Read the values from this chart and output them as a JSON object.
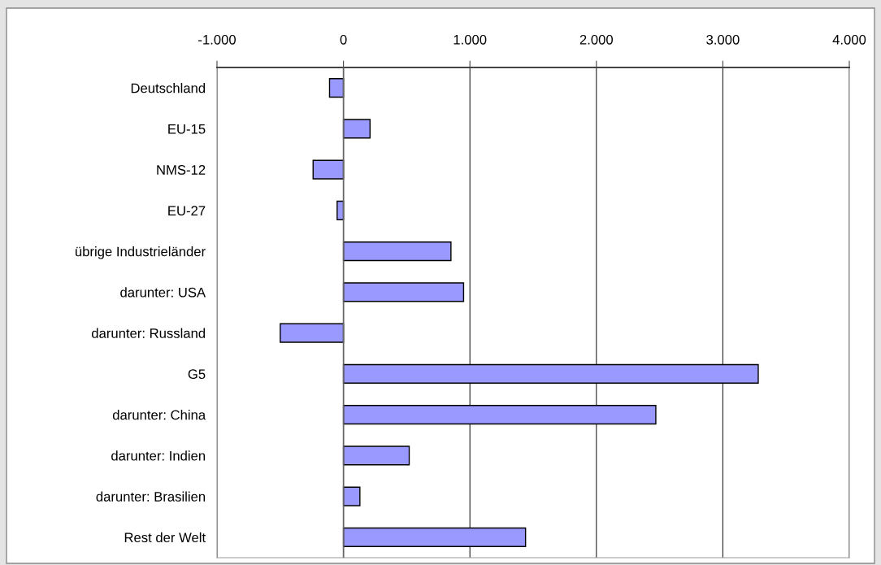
{
  "chart_data": {
    "type": "bar",
    "orientation": "horizontal",
    "categories": [
      "Deutschland",
      "EU-15",
      "NMS-12",
      "EU-27",
      "übrige Industrieländer",
      "darunter: USA",
      "darunter: Russland",
      "G5",
      "darunter: China",
      "darunter: Indien",
      "darunter: Brasilien",
      "Rest der Welt"
    ],
    "values": [
      -110,
      210,
      -240,
      -50,
      850,
      950,
      -500,
      3280,
      2470,
      520,
      130,
      1440
    ],
    "color": "#9999ff",
    "xlim": [
      -1000,
      4000
    ],
    "xticks": [
      {
        "value": -1000,
        "label": "-1.000"
      },
      0,
      {
        "value": 1000,
        "label": "1.000"
      },
      {
        "value": 2000,
        "label": "2.000"
      },
      {
        "value": 3000,
        "label": "3.000"
      },
      {
        "value": 4000,
        "label": "4.000"
      }
    ],
    "grid": "x",
    "legend": false
  }
}
